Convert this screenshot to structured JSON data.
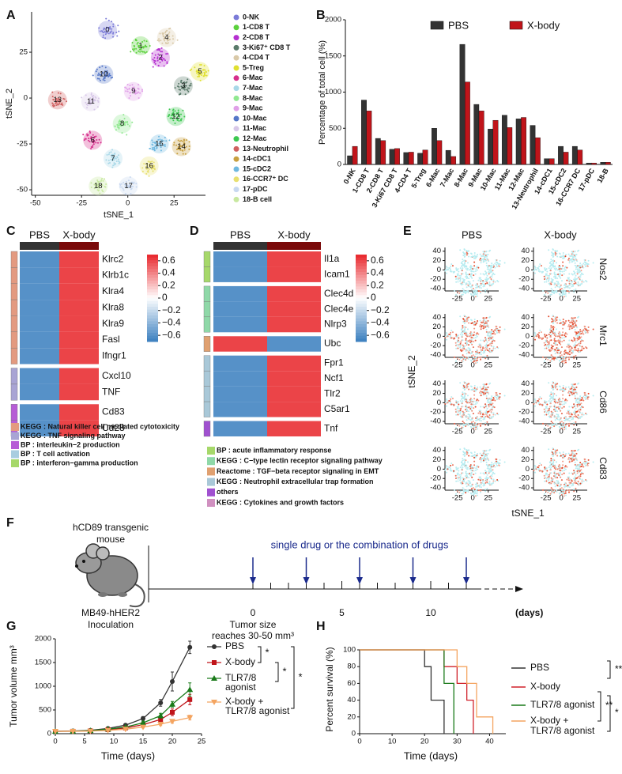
{
  "panel_labels": [
    "A",
    "B",
    "C",
    "D",
    "E",
    "F",
    "G",
    "H"
  ],
  "chart_data": [
    {
      "type": "scatter",
      "xlabel": "tSNE_1",
      "ylabel": "tSNE_2",
      "xlim": [
        -52,
        42
      ],
      "ylim": [
        -53,
        47
      ],
      "xticks": [
        -50,
        -25,
        0,
        25
      ],
      "yticks": [
        25,
        0,
        -25,
        -50
      ],
      "series": [
        {
          "name": "0-NK",
          "label": "0",
          "color": "#7b7bd8",
          "x": -11,
          "y": 37
        },
        {
          "name": "1-CD8 T",
          "label": "1",
          "color": "#5bd13c",
          "x": 7,
          "y": 28.5
        },
        {
          "name": "2-CD8 T",
          "label": "2",
          "color": "#b52fd0",
          "x": 17.6,
          "y": 22
        },
        {
          "name": "3-Ki67⁺ CD8 T",
          "label": "3",
          "color": "#5a7a6a",
          "x": 30,
          "y": 6.7
        },
        {
          "name": "4-CD4 T",
          "label": "4",
          "color": "#d9c9a8",
          "x": 21,
          "y": 33
        },
        {
          "name": "5-Treg",
          "label": "5",
          "color": "#e0e030",
          "x": 39,
          "y": 14.5
        },
        {
          "name": "6-Mac",
          "label": "6",
          "color": "#d62f8c",
          "x": -19,
          "y": -23
        },
        {
          "name": "7-Mac",
          "label": "7",
          "color": "#a8d8e8",
          "x": -8,
          "y": -33
        },
        {
          "name": "8-Mac",
          "label": "8",
          "color": "#90e890",
          "x": -3,
          "y": -14
        },
        {
          "name": "9-Mac",
          "label": "9",
          "color": "#e0a0e8",
          "x": 3,
          "y": 3.6
        },
        {
          "name": "10-Mac",
          "label": "10",
          "color": "#5577c8",
          "x": -13,
          "y": 13
        },
        {
          "name": "11-Mac",
          "label": "11",
          "color": "#d8c8e8",
          "x": -20,
          "y": -2
        },
        {
          "name": "12-Mac",
          "label": "12",
          "color": "#3cc850",
          "x": 26,
          "y": -10
        },
        {
          "name": "13-Neutrophil",
          "label": "13",
          "color": "#d06060",
          "x": -38,
          "y": -1
        },
        {
          "name": "14-cDC1",
          "label": "14",
          "color": "#c8a040",
          "x": 29,
          "y": -26.5
        },
        {
          "name": "15-cDC2",
          "label": "15",
          "color": "#6fb8e0",
          "x": 17,
          "y": -25
        },
        {
          "name": "16-CCR7⁺ DC",
          "label": "16",
          "color": "#e8e070",
          "x": 11.5,
          "y": -37
        },
        {
          "name": "17-pDC",
          "label": "17",
          "color": "#c8d8f0",
          "x": 0.4,
          "y": -48
        },
        {
          "name": "18-B cell",
          "label": "18",
          "color": "#c8e8a0",
          "x": -16,
          "y": -48
        }
      ]
    },
    {
      "type": "bar",
      "ylabel": "Percentage of total cell (%)",
      "legend": "top",
      "categories": [
        "0-NK",
        "1-CD8 T",
        "2-CD8 T",
        "3-Ki67 CD8 T",
        "4-CD4 T",
        "5-Treg",
        "6-Mac",
        "7-Mac",
        "8-Mac",
        "9-Mac",
        "10-Mac",
        "11-Mac",
        "12-Mac",
        "13-Neutrophil",
        "14-cDC1",
        "15-cDC2",
        "16-CCR7 DC",
        "17-pDC",
        "18-B"
      ],
      "series": [
        {
          "name": "PBS",
          "color": "#333333",
          "values": [
            120,
            890,
            360,
            210,
            165,
            155,
            500,
            195,
            1660,
            830,
            490,
            680,
            630,
            540,
            80,
            250,
            250,
            20,
            30
          ]
        },
        {
          "name": "X-body",
          "color": "#c0141a",
          "values": [
            250,
            740,
            330,
            220,
            170,
            200,
            330,
            110,
            1140,
            740,
            610,
            510,
            650,
            370,
            80,
            170,
            200,
            20,
            30
          ]
        }
      ],
      "ylim": [
        0,
        2000
      ],
      "yticks": [
        0,
        500,
        1000,
        1500,
        2000
      ]
    },
    {
      "type": "heatmap",
      "columns": [
        "PBS",
        "X-body"
      ],
      "column_colors": [
        "#333333",
        "#7a0a0a"
      ],
      "rows": [
        "Klrc2",
        "Klrb1c",
        "Klra4",
        "Klra8",
        "Klra9",
        "Fasl",
        "Ifngr1",
        "Cxcl10",
        "TNF",
        "Cd83",
        "Cd28"
      ],
      "values": [
        [
          -0.6,
          0.6
        ],
        [
          -0.6,
          0.6
        ],
        [
          -0.6,
          0.6
        ],
        [
          -0.6,
          0.6
        ],
        [
          -0.6,
          0.6
        ],
        [
          -0.6,
          0.6
        ],
        [
          -0.6,
          0.6
        ],
        [
          -0.6,
          0.6
        ],
        [
          -0.6,
          0.6
        ],
        [
          -0.6,
          0.6
        ],
        [
          -0.6,
          0.6
        ]
      ],
      "row_groups": [
        0,
        0,
        0,
        0,
        0,
        0,
        0,
        1,
        1,
        2,
        2
      ],
      "groups": [
        {
          "name": "KEGG : Natural killer cell mediated cytotoxicity",
          "color": "#e39a80"
        },
        {
          "name": "KEGG : TNF signaling pathway",
          "color": "#a8a4d4"
        },
        {
          "name": "BP : interleukin−2 production",
          "color": "#b65cd6"
        },
        {
          "name": "BP : T cell activation",
          "color": "#a9cde0"
        },
        {
          "name": "BP : interferon−gamma production",
          "color": "#a6d86a"
        }
      ],
      "clim": [
        -0.7,
        0.7
      ],
      "colors": [
        "#3a7fbf",
        "#ffffff",
        "#e8252a"
      ],
      "colorbar_ticks": [
        0.6,
        0.4,
        0.2,
        0,
        {
          "value": -0.2,
          "label": "−0.2"
        },
        {
          "value": -0.4,
          "label": "−0.4"
        },
        {
          "value": -0.6,
          "label": "−0.6"
        }
      ]
    },
    {
      "type": "heatmap",
      "columns": [
        "PBS",
        "X-body"
      ],
      "column_colors": [
        "#333333",
        "#7a0a0a"
      ],
      "rows": [
        "Il1a",
        "Icam1",
        "Clec4d",
        "Clec4e",
        "Nlrp3",
        "Ubc",
        "Fpr1",
        "Ncf1",
        "Tlr2",
        "C5ar1",
        "Tnf"
      ],
      "values": [
        [
          -0.6,
          0.6
        ],
        [
          -0.6,
          0.6
        ],
        [
          -0.6,
          0.6
        ],
        [
          -0.6,
          0.6
        ],
        [
          -0.6,
          0.6
        ],
        [
          0.6,
          -0.6
        ],
        [
          -0.6,
          0.6
        ],
        [
          -0.6,
          0.6
        ],
        [
          -0.6,
          0.6
        ],
        [
          -0.6,
          0.6
        ],
        [
          -0.6,
          0.6
        ]
      ],
      "row_groups": [
        0,
        0,
        1,
        1,
        1,
        2,
        3,
        3,
        3,
        3,
        4
      ],
      "groups": [
        {
          "name": "BP : acute inflammatory response",
          "color": "#a6d86a"
        },
        {
          "name": "KEGG : C−type lectin receptor signaling pathway",
          "color": "#8fd8a8"
        },
        {
          "name": "Reactome : TGF−beta receptor signaling in EMT",
          "color": "#e0a070"
        },
        {
          "name": "KEGG : Neutrophil extracellular trap formation",
          "color": "#a9c8d8"
        },
        {
          "name": "others",
          "color": "#a050d0"
        },
        {
          "name": "KEGG : Cytokines and growth factors",
          "color": "#d090c0"
        }
      ],
      "clim": [
        -0.7,
        0.7
      ],
      "colors": [
        "#3a7fbf",
        "#ffffff",
        "#e8252a"
      ],
      "colorbar_ticks": [
        0.6,
        0.4,
        0.2,
        0,
        {
          "value": -0.2,
          "label": "−0.2"
        },
        {
          "value": -0.4,
          "label": "−0.4"
        },
        {
          "value": -0.6,
          "label": "−0.6"
        }
      ]
    },
    {
      "type": "feature_plot",
      "columns": [
        "PBS",
        "X-body"
      ],
      "genes": [
        "Nos2",
        "Mrc1",
        "Cd86",
        "Cd83"
      ],
      "expression": [
        [
          0.12,
          0.15
        ],
        [
          0.55,
          0.75
        ],
        [
          0.45,
          0.45
        ],
        [
          0.2,
          0.5
        ]
      ],
      "xlabel": "tSNE_1",
      "ylabel": "tSNE_2",
      "xlim": [
        -45,
        42
      ],
      "ylim": [
        -45,
        48
      ],
      "xticks": [
        -25,
        0,
        25
      ],
      "yticks": [
        40,
        20,
        0,
        -20,
        -40
      ]
    },
    {
      "type": "timeline",
      "subject": [
        "hCD89 transgenic",
        "mouse"
      ],
      "inoculation": [
        "MB49-hHER2",
        "Inoculation"
      ],
      "treatment": "single drug or the combination of drugs",
      "start": [
        "Tumor size",
        "reaches 30-50 mm³"
      ],
      "unit": "(days)",
      "xticks": [
        0,
        5,
        10
      ],
      "minor_ticks": [
        1,
        2,
        3,
        4,
        6,
        7,
        8,
        9,
        11,
        12
      ],
      "doses": [
        0,
        3,
        6,
        9,
        12
      ]
    },
    {
      "type": "line",
      "xlabel": "Time (days)",
      "ylabel": "Tumor volume mm³",
      "legend": "right",
      "x": [
        0,
        3,
        6,
        9,
        12,
        15,
        18,
        20,
        23
      ],
      "series": [
        {
          "name": "PBS",
          "color": "#333333",
          "marker": "circle",
          "values": [
            50,
            55,
            70,
            110,
            180,
            320,
            650,
            1100,
            1820
          ],
          "errors": [
            0,
            0,
            5,
            10,
            20,
            40,
            70,
            200,
            130
          ]
        },
        {
          "name": "X-body",
          "color": "#c0141a",
          "marker": "square",
          "values": [
            50,
            52,
            60,
            85,
            120,
            190,
            300,
            450,
            720
          ],
          "errors": [
            0,
            0,
            5,
            10,
            15,
            30,
            40,
            70,
            110
          ]
        },
        {
          "name": [
            "TLR7/8",
            "agonist"
          ],
          "color": "#1a7a1a",
          "marker": "triangle",
          "values": [
            50,
            52,
            65,
            95,
            140,
            230,
            380,
            620,
            930
          ],
          "errors": [
            0,
            0,
            5,
            10,
            15,
            30,
            50,
            60,
            140
          ]
        },
        {
          "name": [
            "X-body +",
            "TLR7/8 agonist"
          ],
          "color": "#f4a460",
          "marker": "triangle-down",
          "values": [
            50,
            50,
            55,
            70,
            95,
            140,
            200,
            260,
            340
          ],
          "errors": [
            0,
            0,
            5,
            5,
            10,
            20,
            30,
            40,
            50
          ]
        }
      ],
      "xlim": [
        0,
        25
      ],
      "xticks": [
        0,
        5,
        10,
        15,
        20,
        25
      ],
      "ylim": [
        0,
        2000
      ],
      "yticks": [
        0,
        500,
        1000,
        1500,
        2000
      ],
      "significance": [
        "*",
        "*",
        "*"
      ]
    },
    {
      "type": "survival",
      "xlabel": "Time (days)",
      "ylabel": "Percent survival (%)",
      "legend": "right",
      "series": [
        {
          "name": "PBS",
          "color": "#333333",
          "x": [
            0,
            20,
            22,
            26
          ],
          "values": [
            100,
            80,
            40,
            0
          ]
        },
        {
          "name": "X-body",
          "color": "#d0202a",
          "x": [
            0,
            26,
            30,
            33,
            35
          ],
          "values": [
            100,
            80,
            60,
            40,
            0
          ]
        },
        {
          "name": [
            "TLR7/8 agonist"
          ],
          "color": "#1a7a1a",
          "x": [
            0,
            26,
            29
          ],
          "values": [
            100,
            60,
            0
          ]
        },
        {
          "name": [
            "X-body +",
            "TLR7/8 agonist"
          ],
          "color": "#f4a460",
          "x": [
            0,
            30,
            33,
            36,
            41
          ],
          "values": [
            100,
            80,
            60,
            20,
            0
          ]
        }
      ],
      "xlim": [
        0,
        45
      ],
      "xticks": [
        0,
        10,
        20,
        30,
        40
      ],
      "ylim": [
        0,
        100
      ],
      "yticks": [
        0,
        20,
        40,
        60,
        80,
        100
      ],
      "significance": [
        "**",
        "*",
        "**"
      ]
    }
  ]
}
